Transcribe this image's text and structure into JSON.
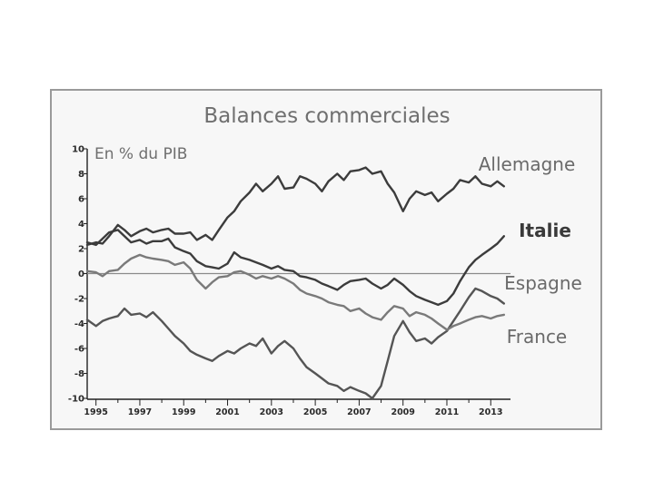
{
  "chart_data": {
    "type": "line",
    "title": "Balances commerciales",
    "unit_label": "En % du PIB",
    "ylim": [
      -10,
      10
    ],
    "yticks": [
      10,
      8,
      6,
      4,
      2,
      0,
      -2,
      -4,
      -6,
      -8,
      -10
    ],
    "xlim": [
      1994.6,
      2013.9
    ],
    "xticks": [
      "1995",
      "1997",
      "1999",
      "2001",
      "2003",
      "2005",
      "2007",
      "2009",
      "2011",
      "2013"
    ],
    "grid": false,
    "zero_line": true,
    "series": [
      {
        "name": "Allemagne",
        "color": "#3c3c3c",
        "x": [
          1994.6,
          1995.0,
          1995.3,
          1995.6,
          1996.0,
          1996.3,
          1996.6,
          1997.0,
          1997.3,
          1997.6,
          1998.0,
          1998.3,
          1998.6,
          1999.0,
          1999.3,
          1999.6,
          2000.0,
          2000.3,
          2000.6,
          2001.0,
          2001.3,
          2001.6,
          2002.0,
          2002.3,
          2002.6,
          2003.0,
          2003.3,
          2003.6,
          2004.0,
          2004.3,
          2004.6,
          2005.0,
          2005.3,
          2005.6,
          2006.0,
          2006.3,
          2006.6,
          2007.0,
          2007.3,
          2007.6,
          2008.0,
          2008.3,
          2008.6,
          2009.0,
          2009.3,
          2009.6,
          2010.0,
          2010.3,
          2010.6,
          2011.0,
          2011.3,
          2011.6,
          2012.0,
          2012.3,
          2012.6,
          2013.0,
          2013.3,
          2013.6
        ],
        "values": [
          2.3,
          2.5,
          2.4,
          3.0,
          3.9,
          3.5,
          3.0,
          3.4,
          3.6,
          3.3,
          3.5,
          3.6,
          3.2,
          3.2,
          3.3,
          2.7,
          3.1,
          2.7,
          3.5,
          4.5,
          5.0,
          5.8,
          6.5,
          7.2,
          6.6,
          7.2,
          7.8,
          6.8,
          6.9,
          7.8,
          7.6,
          7.2,
          6.6,
          7.4,
          8.0,
          7.5,
          8.2,
          8.3,
          8.5,
          8.0,
          8.2,
          7.2,
          6.5,
          5.0,
          6.0,
          6.6,
          6.3,
          6.5,
          5.8,
          6.4,
          6.8,
          7.5,
          7.3,
          7.8,
          7.2,
          7.0,
          7.4,
          7.0
        ]
      },
      {
        "name": "Italie",
        "color": "#3c3c3c",
        "x": [
          1994.6,
          1995.0,
          1995.3,
          1995.6,
          1996.0,
          1996.3,
          1996.6,
          1997.0,
          1997.3,
          1997.6,
          1998.0,
          1998.3,
          1998.6,
          1999.0,
          1999.3,
          1999.6,
          2000.0,
          2000.3,
          2000.6,
          2001.0,
          2001.3,
          2001.6,
          2002.0,
          2002.3,
          2002.6,
          2003.0,
          2003.3,
          2003.6,
          2004.0,
          2004.3,
          2004.6,
          2005.0,
          2005.3,
          2005.6,
          2006.0,
          2006.3,
          2006.6,
          2007.0,
          2007.3,
          2007.6,
          2008.0,
          2008.3,
          2008.6,
          2009.0,
          2009.3,
          2009.6,
          2010.0,
          2010.3,
          2010.6,
          2011.0,
          2011.3,
          2011.6,
          2012.0,
          2012.3,
          2012.6,
          2013.0,
          2013.3,
          2013.6
        ],
        "values": [
          2.5,
          2.3,
          2.8,
          3.3,
          3.5,
          3.0,
          2.5,
          2.7,
          2.4,
          2.6,
          2.6,
          2.8,
          2.1,
          1.8,
          1.6,
          1.0,
          0.6,
          0.5,
          0.4,
          0.8,
          1.7,
          1.3,
          1.1,
          0.9,
          0.7,
          0.4,
          0.6,
          0.3,
          0.2,
          -0.2,
          -0.3,
          -0.5,
          -0.8,
          -1.0,
          -1.3,
          -0.9,
          -0.6,
          -0.5,
          -0.4,
          -0.8,
          -1.2,
          -0.9,
          -0.4,
          -0.9,
          -1.4,
          -1.8,
          -2.1,
          -2.3,
          -2.5,
          -2.2,
          -1.6,
          -0.6,
          0.5,
          1.1,
          1.5,
          2.0,
          2.4,
          3.0
        ]
      },
      {
        "name": "Espagne",
        "color": "#555555",
        "x": [
          1994.6,
          1995.0,
          1995.3,
          1995.6,
          1996.0,
          1996.3,
          1996.6,
          1997.0,
          1997.3,
          1997.6,
          1998.0,
          1998.3,
          1998.6,
          1999.0,
          1999.3,
          1999.6,
          2000.0,
          2000.3,
          2000.6,
          2001.0,
          2001.3,
          2001.6,
          2002.0,
          2002.3,
          2002.6,
          2003.0,
          2003.3,
          2003.6,
          2004.0,
          2004.3,
          2004.6,
          2005.0,
          2005.3,
          2005.6,
          2006.0,
          2006.3,
          2006.6,
          2007.0,
          2007.3,
          2007.6,
          2008.0,
          2008.3,
          2008.6,
          2009.0,
          2009.3,
          2009.6,
          2010.0,
          2010.3,
          2010.6,
          2011.0,
          2011.3,
          2011.6,
          2012.0,
          2012.3,
          2012.6,
          2013.0,
          2013.3,
          2013.6
        ],
        "values": [
          -3.7,
          -4.2,
          -3.8,
          -3.6,
          -3.4,
          -2.8,
          -3.3,
          -3.2,
          -3.5,
          -3.1,
          -3.8,
          -4.4,
          -5.0,
          -5.6,
          -6.2,
          -6.5,
          -6.8,
          -7.0,
          -6.6,
          -6.2,
          -6.4,
          -6.0,
          -5.6,
          -5.8,
          -5.2,
          -6.4,
          -5.8,
          -5.4,
          -6.0,
          -6.8,
          -7.5,
          -8.0,
          -8.4,
          -8.8,
          -9.0,
          -9.4,
          -9.1,
          -9.4,
          -9.6,
          -10.0,
          -9.0,
          -7.0,
          -5.0,
          -3.8,
          -4.7,
          -5.4,
          -5.2,
          -5.6,
          -5.1,
          -4.6,
          -3.8,
          -3.0,
          -1.9,
          -1.2,
          -1.4,
          -1.8,
          -2.0,
          -2.4
        ]
      },
      {
        "name": "France",
        "color": "#7a7a7a",
        "x": [
          1994.6,
          1995.0,
          1995.3,
          1995.6,
          1996.0,
          1996.3,
          1996.6,
          1997.0,
          1997.3,
          1997.6,
          1998.0,
          1998.3,
          1998.6,
          1999.0,
          1999.3,
          1999.6,
          2000.0,
          2000.3,
          2000.6,
          2001.0,
          2001.3,
          2001.6,
          2002.0,
          2002.3,
          2002.6,
          2003.0,
          2003.3,
          2003.6,
          2004.0,
          2004.3,
          2004.6,
          2005.0,
          2005.3,
          2005.6,
          2006.0,
          2006.3,
          2006.6,
          2007.0,
          2007.3,
          2007.6,
          2008.0,
          2008.3,
          2008.6,
          2009.0,
          2009.3,
          2009.6,
          2010.0,
          2010.3,
          2010.6,
          2011.0,
          2011.3,
          2011.6,
          2012.0,
          2012.3,
          2012.6,
          2013.0,
          2013.3,
          2013.6
        ],
        "values": [
          0.2,
          0.1,
          -0.2,
          0.2,
          0.3,
          0.8,
          1.2,
          1.5,
          1.3,
          1.2,
          1.1,
          1.0,
          0.7,
          0.9,
          0.4,
          -0.5,
          -1.2,
          -0.7,
          -0.3,
          -0.2,
          0.1,
          0.2,
          -0.1,
          -0.4,
          -0.2,
          -0.4,
          -0.2,
          -0.4,
          -0.8,
          -1.3,
          -1.6,
          -1.8,
          -2.0,
          -2.3,
          -2.5,
          -2.6,
          -3.0,
          -2.8,
          -3.2,
          -3.5,
          -3.7,
          -3.1,
          -2.6,
          -2.8,
          -3.4,
          -3.1,
          -3.3,
          -3.6,
          -4.0,
          -4.5,
          -4.2,
          -4.0,
          -3.7,
          -3.5,
          -3.4,
          -3.6,
          -3.4,
          -3.3
        ]
      }
    ]
  }
}
